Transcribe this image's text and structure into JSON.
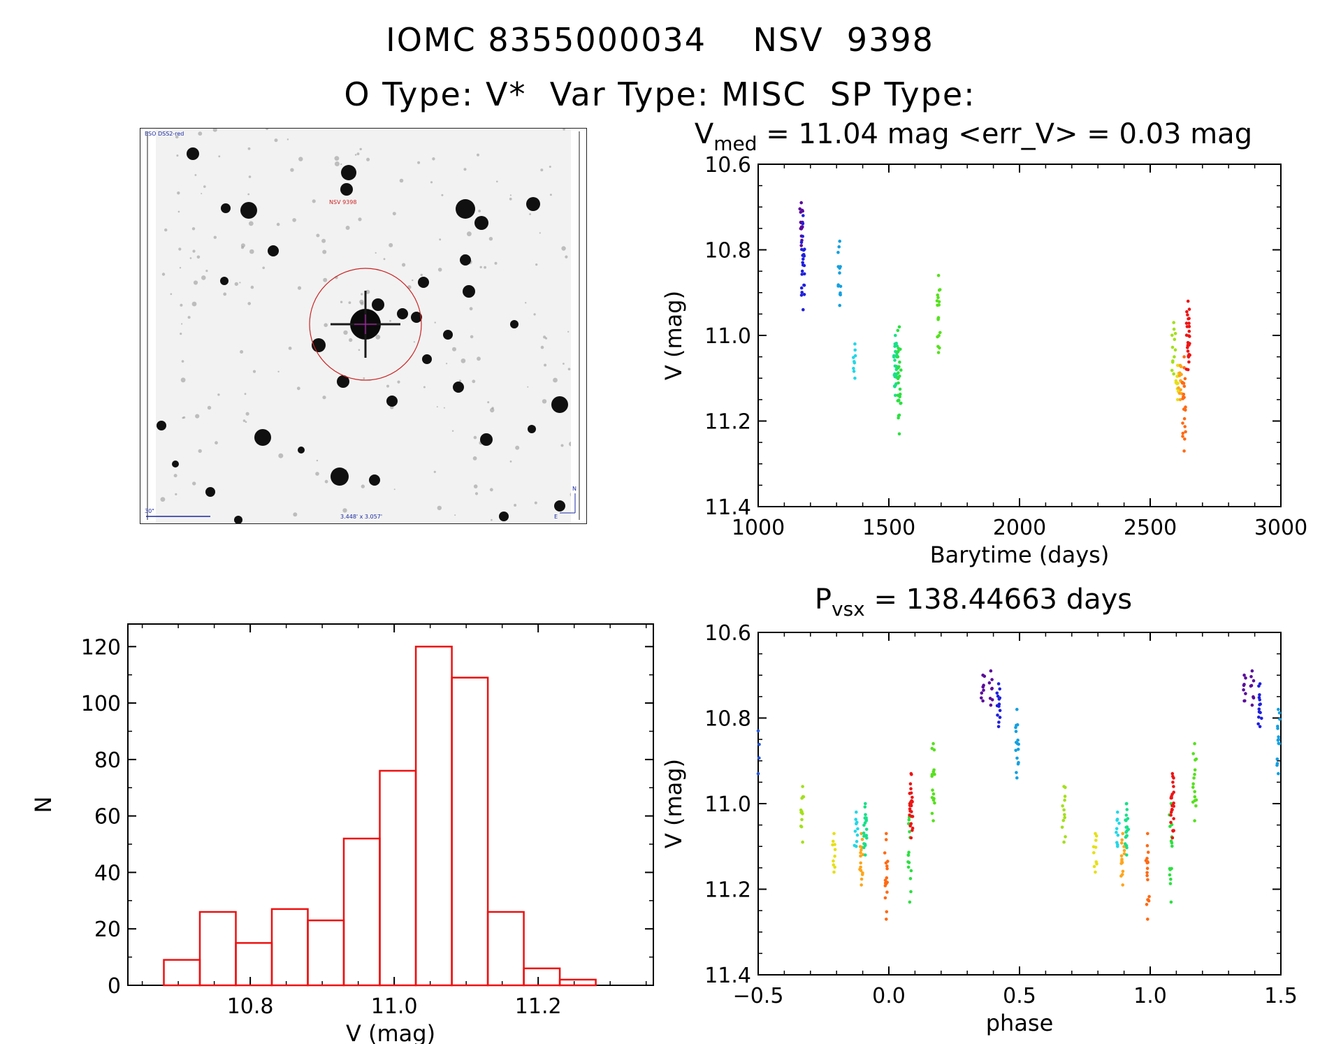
{
  "header": {
    "title": "IOMC 8355000034    NSV  9398",
    "subtitle": "O Type: V*  Var Type: MISC  SP Type:"
  },
  "finder_chart": {
    "survey_label": "ESO DSS2-red",
    "target_label": "NSV 9398",
    "scale_label": "30\"",
    "fov_label": "3.448' x 3.057'",
    "compass_n": "N",
    "compass_e": "E",
    "target_circle_color": "#cc2222",
    "crosshair_color": "#cc22cc"
  },
  "chart_data": [
    {
      "id": "lightcurve",
      "type": "scatter",
      "title": "V_med = 11.04 mag <err_V> = 0.03 mag",
      "title_parts": {
        "v": "V",
        "sub": "med",
        "rest": " = 11.04 mag <err_V> = 0.03 mag"
      },
      "xlabel": "Barytime (days)",
      "ylabel": "V (mag)",
      "xlim": [
        1000,
        3000
      ],
      "ylim": [
        11.4,
        10.6
      ],
      "y_inverted": true,
      "xticks": [
        1000,
        1500,
        2000,
        2500,
        3000
      ],
      "xtick_labels": [
        "1000",
        "1500",
        "2000",
        "2500",
        "3000"
      ],
      "yticks": [
        10.6,
        10.8,
        11.0,
        11.2,
        11.4
      ],
      "ytick_labels": [
        "10.6",
        "10.8",
        "11.0",
        "11.2",
        "11.4"
      ],
      "groups": [
        {
          "x": 1165,
          "ymin": 10.69,
          "ymax": 10.79,
          "n": 14,
          "color": "#5a0a9a"
        },
        {
          "x": 1172,
          "ymin": 10.72,
          "ymax": 10.94,
          "n": 22,
          "color": "#2020dd"
        },
        {
          "x": 1312,
          "ymin": 10.78,
          "ymax": 10.93,
          "n": 12,
          "color": "#14a0e0"
        },
        {
          "x": 1370,
          "ymin": 11.02,
          "ymax": 11.1,
          "n": 7,
          "color": "#22d8e6"
        },
        {
          "x": 1525,
          "ymin": 11.0,
          "ymax": 11.14,
          "n": 26,
          "color": "#19e08a"
        },
        {
          "x": 1540,
          "ymin": 10.98,
          "ymax": 11.23,
          "n": 28,
          "color": "#2ce040"
        },
        {
          "x": 1690,
          "ymin": 10.86,
          "ymax": 11.04,
          "n": 16,
          "color": "#55e11d"
        },
        {
          "x": 2590,
          "ymin": 10.97,
          "ymax": 11.09,
          "n": 10,
          "color": "#a3e01a"
        },
        {
          "x": 2605,
          "ymin": 11.07,
          "ymax": 11.15,
          "n": 12,
          "color": "#e6e015"
        },
        {
          "x": 2615,
          "ymin": 11.07,
          "ymax": 11.15,
          "n": 10,
          "color": "#ffa51a"
        },
        {
          "x": 2630,
          "ymin": 11.05,
          "ymax": 11.27,
          "n": 20,
          "color": "#ff6a14"
        },
        {
          "x": 2645,
          "ymin": 10.92,
          "ymax": 11.08,
          "n": 26,
          "color": "#ee1414"
        }
      ]
    },
    {
      "id": "histogram",
      "type": "bar",
      "xlabel": "V (mag)",
      "ylabel": "N",
      "xlim": [
        10.63,
        11.36
      ],
      "ylim": [
        0,
        128
      ],
      "xticks": [
        10.8,
        11.0,
        11.2
      ],
      "xtick_labels": [
        "10.8",
        "11.0",
        "11.2"
      ],
      "yticks": [
        0,
        20,
        40,
        60,
        80,
        100,
        120
      ],
      "ytick_labels": [
        "0",
        "20",
        "40",
        "60",
        "80",
        "100",
        "120"
      ],
      "bin_edges": [
        10.68,
        10.73,
        10.78,
        10.83,
        10.88,
        10.93,
        10.98,
        11.03,
        11.08,
        11.13,
        11.18,
        11.23,
        11.28
      ],
      "values": [
        9,
        26,
        15,
        27,
        23,
        52,
        76,
        120,
        109,
        26,
        6,
        2
      ],
      "color": "#ee1111"
    },
    {
      "id": "phased",
      "type": "scatter",
      "title": "P_vsx = 138.44663 days",
      "title_parts": {
        "v": "P",
        "sub": "vsx",
        "rest": " = 138.44663 days"
      },
      "xlabel": "phase",
      "ylabel": "V (mag)",
      "xlim": [
        -0.5,
        1.5
      ],
      "ylim": [
        11.4,
        10.6
      ],
      "y_inverted": true,
      "xticks": [
        -0.5,
        0.0,
        0.5,
        1.0,
        1.5
      ],
      "xtick_labels": [
        "−0.5",
        "0.0",
        "0.5",
        "1.0",
        "1.5"
      ],
      "yticks": [
        10.6,
        10.8,
        11.0,
        11.2,
        11.4
      ],
      "ytick_labels": [
        "10.6",
        "10.8",
        "11.0",
        "11.2",
        "11.4"
      ],
      "groups": [
        {
          "x": 0.36,
          "ymin": 10.7,
          "ymax": 10.76,
          "n": 6,
          "color": "#5a0a9a"
        },
        {
          "x": 0.39,
          "ymin": 10.69,
          "ymax": 10.77,
          "n": 6,
          "color": "#5a0a9a"
        },
        {
          "x": 0.42,
          "ymin": 10.72,
          "ymax": 10.82,
          "n": 12,
          "color": "#2020dd"
        },
        {
          "x": 0.49,
          "ymin": 10.78,
          "ymax": 10.94,
          "n": 14,
          "color": "#14a0e0"
        },
        {
          "x": -0.5,
          "ymin": 10.83,
          "ymax": 10.93,
          "n": 5,
          "color": "#2255dd"
        },
        {
          "x": 1.36,
          "ymin": 10.7,
          "ymax": 10.76,
          "n": 6,
          "color": "#5a0a9a"
        },
        {
          "x": 1.39,
          "ymin": 10.69,
          "ymax": 10.77,
          "n": 6,
          "color": "#5a0a9a"
        },
        {
          "x": 1.42,
          "ymin": 10.72,
          "ymax": 10.82,
          "n": 12,
          "color": "#2020dd"
        },
        {
          "x": 1.49,
          "ymin": 10.78,
          "ymax": 10.93,
          "n": 12,
          "color": "#14a0e0"
        },
        {
          "x": -0.33,
          "ymin": 10.96,
          "ymax": 11.09,
          "n": 10,
          "color": "#a3e01a"
        },
        {
          "x": 0.67,
          "ymin": 10.96,
          "ymax": 11.09,
          "n": 10,
          "color": "#a3e01a"
        },
        {
          "x": -0.21,
          "ymin": 11.07,
          "ymax": 11.16,
          "n": 8,
          "color": "#e6e015"
        },
        {
          "x": 0.79,
          "ymin": 11.07,
          "ymax": 11.16,
          "n": 8,
          "color": "#e6e015"
        },
        {
          "x": -0.125,
          "ymin": 11.02,
          "ymax": 11.1,
          "n": 8,
          "color": "#22d8e6"
        },
        {
          "x": 0.875,
          "ymin": 11.02,
          "ymax": 11.1,
          "n": 8,
          "color": "#22d8e6"
        },
        {
          "x": -0.105,
          "ymin": 11.07,
          "ymax": 11.19,
          "n": 14,
          "color": "#ffa51a"
        },
        {
          "x": 0.895,
          "ymin": 11.07,
          "ymax": 11.19,
          "n": 14,
          "color": "#ffa51a"
        },
        {
          "x": -0.09,
          "ymin": 11.0,
          "ymax": 11.12,
          "n": 18,
          "color": "#19e08a"
        },
        {
          "x": 0.91,
          "ymin": 11.0,
          "ymax": 11.12,
          "n": 18,
          "color": "#19e08a"
        },
        {
          "x": -0.01,
          "ymin": 11.07,
          "ymax": 11.27,
          "n": 16,
          "color": "#ff6a14"
        },
        {
          "x": 0.99,
          "ymin": 11.07,
          "ymax": 11.27,
          "n": 16,
          "color": "#ff6a14"
        },
        {
          "x": 0.08,
          "ymin": 11.0,
          "ymax": 11.23,
          "n": 14,
          "color": "#2ce040"
        },
        {
          "x": 1.08,
          "ymin": 11.0,
          "ymax": 11.23,
          "n": 14,
          "color": "#2ce040"
        },
        {
          "x": 0.085,
          "ymin": 10.93,
          "ymax": 11.08,
          "n": 24,
          "color": "#ee1414"
        },
        {
          "x": 1.085,
          "ymin": 10.93,
          "ymax": 11.08,
          "n": 24,
          "color": "#ee1414"
        },
        {
          "x": 0.17,
          "ymin": 10.86,
          "ymax": 11.04,
          "n": 14,
          "color": "#55e11d"
        },
        {
          "x": 1.17,
          "ymin": 10.86,
          "ymax": 11.04,
          "n": 14,
          "color": "#55e11d"
        }
      ]
    }
  ]
}
